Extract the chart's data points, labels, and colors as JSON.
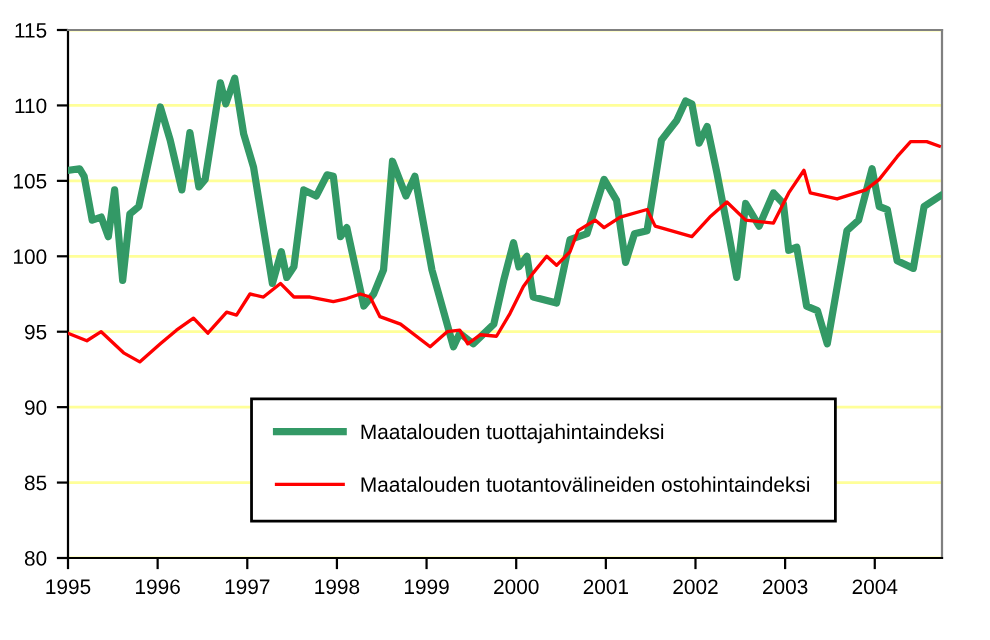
{
  "chart_data": {
    "type": "line",
    "xlim": [
      1995,
      2004.75
    ],
    "xticks": [
      1995,
      1996,
      1997,
      1998,
      1999,
      2000,
      2001,
      2002,
      2003,
      2004
    ],
    "ylim": [
      80,
      115
    ],
    "yticks": [
      80,
      85,
      90,
      95,
      100,
      105,
      110,
      115
    ],
    "grid": "y",
    "legend": "bottom",
    "marker": "none",
    "line_style": "solid",
    "series": [
      {
        "name": "Maatalouden tuottajahintaindeksi",
        "color": "#339966",
        "x": [
          1995.0,
          1995.13,
          1995.18,
          1995.27,
          1995.37,
          1995.45,
          1995.52,
          1995.61,
          1995.69,
          1995.79,
          1996.03,
          1996.14,
          1996.27,
          1996.36,
          1996.46,
          1996.53,
          1996.7,
          1996.76,
          1996.86,
          1996.96,
          1997.07,
          1997.28,
          1997.38,
          1997.44,
          1997.52,
          1997.63,
          1997.77,
          1997.89,
          1997.96,
          1998.04,
          1998.11,
          1998.3,
          1998.41,
          1998.52,
          1998.62,
          1998.77,
          1998.87,
          1999.06,
          1999.3,
          1999.37,
          1999.52,
          1999.75,
          1999.86,
          1999.97,
          2000.03,
          2000.12,
          2000.19,
          2000.45,
          2000.6,
          2000.79,
          2000.98,
          2001.12,
          2001.22,
          2001.32,
          2001.46,
          2001.62,
          2001.79,
          2001.89,
          2001.96,
          2002.04,
          2002.13,
          2002.24,
          2002.37,
          2002.46,
          2002.56,
          2002.71,
          2002.87,
          2002.98,
          2003.04,
          2003.13,
          2003.24,
          2003.36,
          2003.47,
          2003.69,
          2003.82,
          2003.97,
          2004.05,
          2004.14,
          2004.25,
          2004.43,
          2004.55,
          2004.73
        ],
        "values": [
          105.7,
          105.8,
          105.3,
          102.4,
          102.6,
          101.3,
          104.4,
          98.4,
          102.8,
          103.3,
          109.9,
          107.7,
          104.4,
          108.2,
          104.6,
          105.1,
          111.5,
          110.1,
          111.8,
          108.1,
          105.9,
          98.2,
          100.3,
          98.6,
          99.3,
          104.4,
          104.0,
          105.4,
          105.3,
          101.3,
          101.9,
          96.7,
          97.5,
          99.1,
          106.3,
          104.0,
          105.3,
          99.1,
          94.0,
          94.9,
          94.2,
          95.5,
          98.4,
          100.9,
          99.3,
          100.0,
          97.3,
          96.9,
          101.1,
          101.5,
          105.1,
          103.7,
          99.6,
          101.5,
          101.7,
          107.7,
          109.0,
          110.3,
          110.1,
          107.5,
          108.6,
          105.5,
          101.5,
          98.6,
          103.5,
          102.0,
          104.2,
          103.5,
          100.4,
          100.6,
          96.7,
          96.4,
          94.2,
          101.7,
          102.4,
          105.8,
          103.3,
          103.1,
          99.7,
          99.2,
          103.3,
          104.0
        ]
      },
      {
        "name": "Maatalouden tuotantovälineiden ostohintaindeksi",
        "color": "#ff0000",
        "x": [
          1995.0,
          1995.21,
          1995.37,
          1995.62,
          1995.8,
          1996.03,
          1996.21,
          1996.4,
          1996.56,
          1996.77,
          1996.88,
          1997.03,
          1997.18,
          1997.37,
          1997.52,
          1997.7,
          1997.96,
          1998.11,
          1998.26,
          1998.37,
          1998.48,
          1998.71,
          1999.04,
          1999.23,
          1999.37,
          1999.46,
          1999.6,
          1999.78,
          1999.93,
          2000.08,
          2000.19,
          2000.34,
          2000.45,
          2000.6,
          2000.69,
          2000.88,
          2000.98,
          2001.16,
          2001.46,
          2001.55,
          2001.96,
          2002.16,
          2002.35,
          2002.56,
          2002.87,
          2003.04,
          2003.21,
          2003.28,
          2003.58,
          2003.9,
          2004.05,
          2004.25,
          2004.4,
          2004.58,
          2004.72
        ],
        "values": [
          94.9,
          94.4,
          95.0,
          93.6,
          93.0,
          94.2,
          95.1,
          95.9,
          94.9,
          96.3,
          96.1,
          97.5,
          97.3,
          98.2,
          97.3,
          97.3,
          97.0,
          97.2,
          97.5,
          97.3,
          96.0,
          95.5,
          94.0,
          95.0,
          95.1,
          94.2,
          94.8,
          94.7,
          96.2,
          98.0,
          98.9,
          100.0,
          99.4,
          100.3,
          101.7,
          102.4,
          101.9,
          102.6,
          103.1,
          102.0,
          101.3,
          102.6,
          103.6,
          102.4,
          102.2,
          104.2,
          105.7,
          104.2,
          103.8,
          104.4,
          105.1,
          106.6,
          107.6,
          107.6,
          107.3
        ]
      }
    ]
  }
}
